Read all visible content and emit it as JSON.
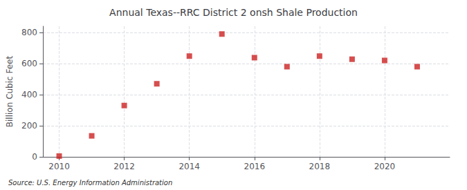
{
  "chart_data": {
    "type": "scatter",
    "title": "Annual Texas--RRC District 2 onsh Shale Production",
    "ylabel": "Billion Cubic Feet",
    "source": "Source: U.S. Energy Information Administration",
    "x": [
      2010,
      2011,
      2012,
      2013,
      2014,
      2015,
      2016,
      2017,
      2018,
      2019,
      2020,
      2021
    ],
    "values": [
      5,
      135,
      330,
      470,
      648,
      790,
      638,
      580,
      648,
      628,
      620,
      580
    ],
    "color": "#cc2222",
    "marker": "square",
    "xlim": [
      2009.5,
      2022.0
    ],
    "xticks": [
      2010,
      2012,
      2014,
      2016,
      2018,
      2020
    ],
    "ylim": [
      0,
      840
    ],
    "yticks": [
      0,
      200,
      400,
      600,
      800
    ],
    "grid": true
  }
}
